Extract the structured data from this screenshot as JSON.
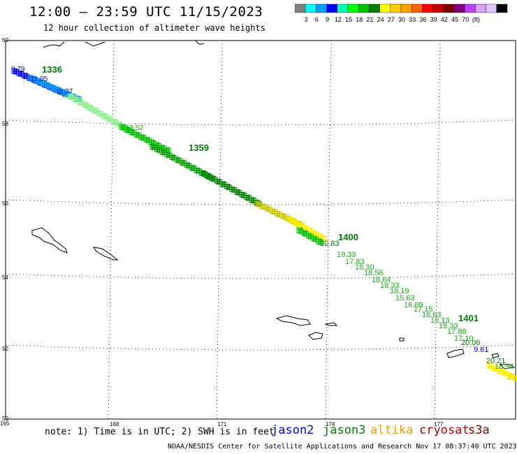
{
  "header": {
    "title": "12:00 – 23:59 UTC 11/15/2023",
    "subtitle": "12 hour collection of altimeter wave heights"
  },
  "colorbar": {
    "colors": [
      "#808080",
      "#00ffff",
      "#00a0ff",
      "#0000ff",
      "#00ffb0",
      "#00ff00",
      "#00c000",
      "#008000",
      "#ffff00",
      "#ffcc00",
      "#ffa000",
      "#ff6000",
      "#ff0000",
      "#c00000",
      "#800000",
      "#800080",
      "#c040ff",
      "#d8a0ff",
      "#e0c8ff",
      "#000000"
    ],
    "labels": [
      "3",
      "6",
      "9",
      "12",
      "15",
      "18",
      "21",
      "24",
      "27",
      "30",
      "33",
      "36",
      "39",
      "42",
      "45",
      "70",
      "(ft)"
    ]
  },
  "axes": {
    "lon_labels": [
      "165",
      "168",
      "171",
      "174",
      "177"
    ],
    "lat_labels": [
      "60",
      "58",
      "56",
      "54",
      "52",
      "50"
    ]
  },
  "track_labels": [
    {
      "text": "9.79",
      "color": "#0000ff"
    },
    {
      "text": "1336",
      "color": "#008000"
    },
    {
      "text": "11.05",
      "color": "#0000ff"
    },
    {
      "text": "11.37",
      "color": "#0000ff"
    },
    {
      "text": "13.52",
      "color": "#00c000"
    },
    {
      "text": "1359",
      "color": "#008000"
    },
    {
      "text": "20.83",
      "color": "#008000"
    },
    {
      "text": "1400",
      "color": "#008000"
    },
    {
      "text": "19.33",
      "color": "#00c000"
    },
    {
      "text": "17.83",
      "color": "#00c000"
    },
    {
      "text": "18.30",
      "color": "#00c000"
    },
    {
      "text": "18.58",
      "color": "#00c000"
    },
    {
      "text": "18.64",
      "color": "#00c000"
    },
    {
      "text": "18.33",
      "color": "#00c000"
    },
    {
      "text": "18.19",
      "color": "#00c000"
    },
    {
      "text": "15.63",
      "color": "#00c000"
    },
    {
      "text": "16.69",
      "color": "#00c000"
    },
    {
      "text": "17.15",
      "color": "#00c000"
    },
    {
      "text": "18.63",
      "color": "#00c000"
    },
    {
      "text": "18.13",
      "color": "#00c000"
    },
    {
      "text": "1401",
      "color": "#008000"
    },
    {
      "text": "18.33",
      "color": "#00c000"
    },
    {
      "text": "17.88",
      "color": "#00c000"
    },
    {
      "text": "17.10",
      "color": "#00c000"
    },
    {
      "text": "20.06",
      "color": "#008000"
    },
    {
      "text": "9.61",
      "color": "#0000ff"
    },
    {
      "text": "20.21",
      "color": "#008000"
    },
    {
      "text": "18.94",
      "color": "#00c000"
    },
    {
      "text": "24",
      "color": "#ffcc00"
    }
  ],
  "note": "note: 1) Time is in UTC; 2) SWH is in feet",
  "legend": [
    {
      "label": "jason2",
      "color": "#0000ff"
    },
    {
      "label": "jason3",
      "color": "#008000"
    },
    {
      "label": "altika",
      "color": "#ffa000"
    },
    {
      "label": "cryosat",
      "color": "#c00000"
    },
    {
      "label": "s3a",
      "color": "#800000"
    }
  ],
  "footer": "NOAA/NESDIS Center for Satellite Applications and Research   Nov 17 08:37:40 UTC 2023"
}
